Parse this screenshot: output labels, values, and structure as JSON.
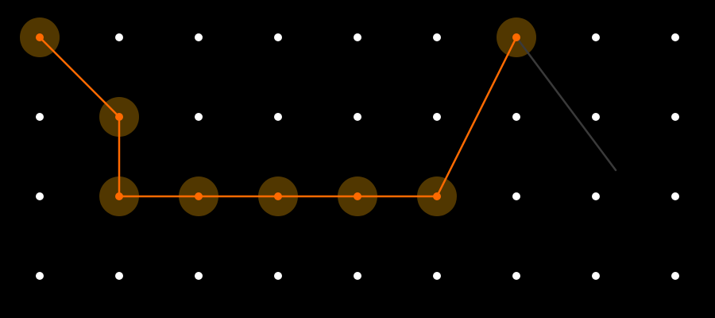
{
  "pattern_lock": {
    "grid": {
      "columns": 9,
      "rows": 4
    },
    "selected_path": [
      {
        "col": 0,
        "row": 0
      },
      {
        "col": 1,
        "row": 1
      },
      {
        "col": 1,
        "row": 2
      },
      {
        "col": 2,
        "row": 2
      },
      {
        "col": 3,
        "row": 2
      },
      {
        "col": 4,
        "row": 2
      },
      {
        "col": 5,
        "row": 2
      },
      {
        "col": 6,
        "row": 0
      }
    ],
    "drag_in_progress": true,
    "colors": {
      "background": "#000000",
      "idle_dot": "#ffffff",
      "active_dot": "#ff6a00",
      "active_line": "#ff6a00",
      "active_halo": "#5a3d00",
      "drag_line": "#3a3a3a"
    }
  }
}
